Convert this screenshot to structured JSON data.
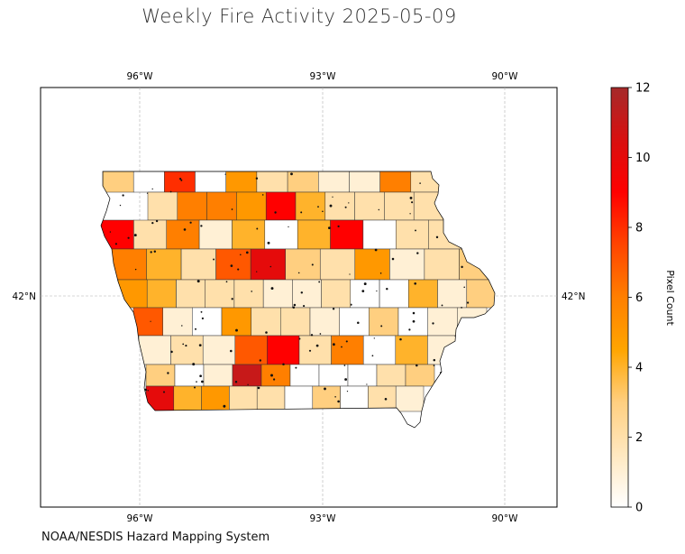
{
  "title": "Weekly Fire Activity 2025-05-09",
  "source": "NOAA/NESDIS Hazard Mapping System",
  "colorbar": {
    "label": "Pixel Count",
    "min": 0,
    "max": 12,
    "ticks": [
      "0",
      "2",
      "4",
      "6",
      "8",
      "10",
      "12"
    ],
    "colors": [
      "#ffffff",
      "#ffe8c0",
      "#ffcf80",
      "#ffa500",
      "#ff7f00",
      "#ff4500",
      "#ff0000",
      "#d81010",
      "#a52a2a"
    ]
  },
  "axes": {
    "lon_ticks": [
      "96°W",
      "93°W",
      "90°W"
    ],
    "lat_ticks": [
      "42°N"
    ],
    "grid": true
  },
  "chart_data": {
    "type": "heatmap",
    "title": "Weekly Fire Activity 2025-05-09",
    "region": "Iowa",
    "value_label": "Pixel Count",
    "vmin": 0,
    "vmax": 12,
    "extent_lon": [
      -97.6,
      -89.1
    ],
    "extent_lat": [
      39.6,
      44.7
    ],
    "rows": [
      [
        3,
        0,
        8,
        0,
        5,
        2,
        3,
        1,
        1,
        6,
        2
      ],
      [
        2,
        6,
        6,
        5,
        9,
        4,
        2,
        2,
        2,
        2
      ],
      [
        9,
        2,
        6,
        1,
        4,
        0,
        4,
        9,
        0,
        2,
        2
      ],
      [
        6,
        4,
        2,
        7,
        10,
        3,
        2,
        5,
        1,
        2,
        3
      ],
      [
        5,
        4,
        2,
        2,
        2,
        1,
        1,
        2,
        0,
        0,
        4,
        1,
        3
      ],
      [
        7,
        1,
        0,
        5,
        2,
        2,
        1,
        0,
        3,
        0,
        1,
        1
      ],
      [
        1,
        2,
        1,
        7,
        9,
        2,
        6,
        0,
        4,
        1
      ],
      [
        3,
        0,
        1,
        11,
        6,
        0,
        0,
        0,
        2,
        3
      ],
      [
        10,
        4,
        5,
        2,
        2,
        0,
        3,
        0,
        2,
        1
      ]
    ]
  }
}
